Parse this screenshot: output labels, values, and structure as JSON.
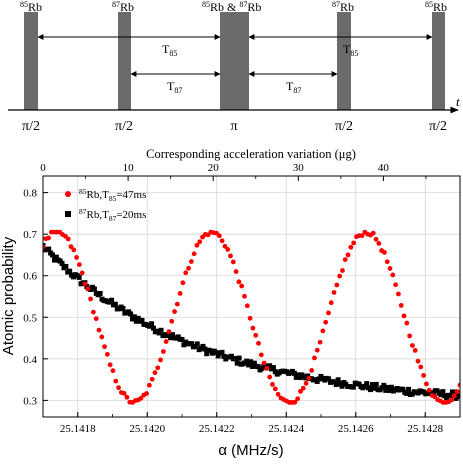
{
  "timeline": {
    "pulse_labels": [
      {
        "iso": "85",
        "el": "Rb"
      },
      {
        "iso": "87",
        "el": "Rb"
      },
      {
        "iso": "85",
        "el": "Rb & "
      },
      {
        "iso": "87",
        "el": "Rb"
      },
      {
        "iso": "85",
        "el": "Rb"
      }
    ],
    "mid_label_second": {
      "iso": "87",
      "el": "Rb"
    },
    "phase_labels": [
      "π/2",
      "π/2",
      "π",
      "π/2",
      "π/2"
    ],
    "time_axis_label": "t",
    "interval_85": {
      "main": "T",
      "sub": "85"
    },
    "interval_87": {
      "main": "T",
      "sub": "87"
    },
    "colors": {
      "pulse": "#6b6b6b"
    }
  },
  "chart_data": {
    "type": "scatter",
    "xlabel": "α (MHz/s)",
    "ylabel": "Atomic probability",
    "top_axis_label": "Corresponding acceleration variation (μg)",
    "xlim": [
      25.1417,
      25.1429
    ],
    "ylim": [
      0.26,
      0.84
    ],
    "top_xlim": [
      0,
      49
    ],
    "x_ticks": [
      "25.1418",
      "25.1420",
      "25.1422",
      "25.1424",
      "25.1426",
      "25.1428"
    ],
    "x_tick_values": [
      25.1418,
      25.142,
      25.1422,
      25.1424,
      25.1426,
      25.1428
    ],
    "y_ticks": [
      "0.3",
      "0.4",
      "0.5",
      "0.6",
      "0.7",
      "0.8"
    ],
    "y_tick_values": [
      0.3,
      0.4,
      0.5,
      0.6,
      0.7,
      0.8
    ],
    "top_ticks": [
      "0",
      "10",
      "20",
      "30",
      "40"
    ],
    "top_tick_values": [
      0,
      10,
      20,
      30,
      40
    ],
    "grid": true,
    "legend_position": "top-left",
    "series": [
      {
        "name": {
          "iso": "85",
          "rest": "Rb,T",
          "sub": "85",
          "tail": "=47ms"
        },
        "marker": "circle",
        "color": "#ff0000",
        "model": {
          "kind": "cosine",
          "mean": 0.5,
          "amplitude": 0.205,
          "peak_x": 25.142185,
          "period": 0.000445,
          "x_range": [
            25.1417,
            25.1429
          ],
          "points": 150,
          "clip": [
            0.295,
            0.705
          ]
        }
      },
      {
        "name": {
          "iso": "87",
          "rest": "Rb,T",
          "sub": "87",
          "tail": "=20ms"
        },
        "marker": "square",
        "color": "#000000",
        "model": {
          "kind": "decay",
          "x_range": [
            25.1417,
            25.1429
          ],
          "points": 220,
          "start": 0.67,
          "end": 0.33,
          "tau": 0.00045,
          "floor": 0.285
        }
      }
    ]
  }
}
